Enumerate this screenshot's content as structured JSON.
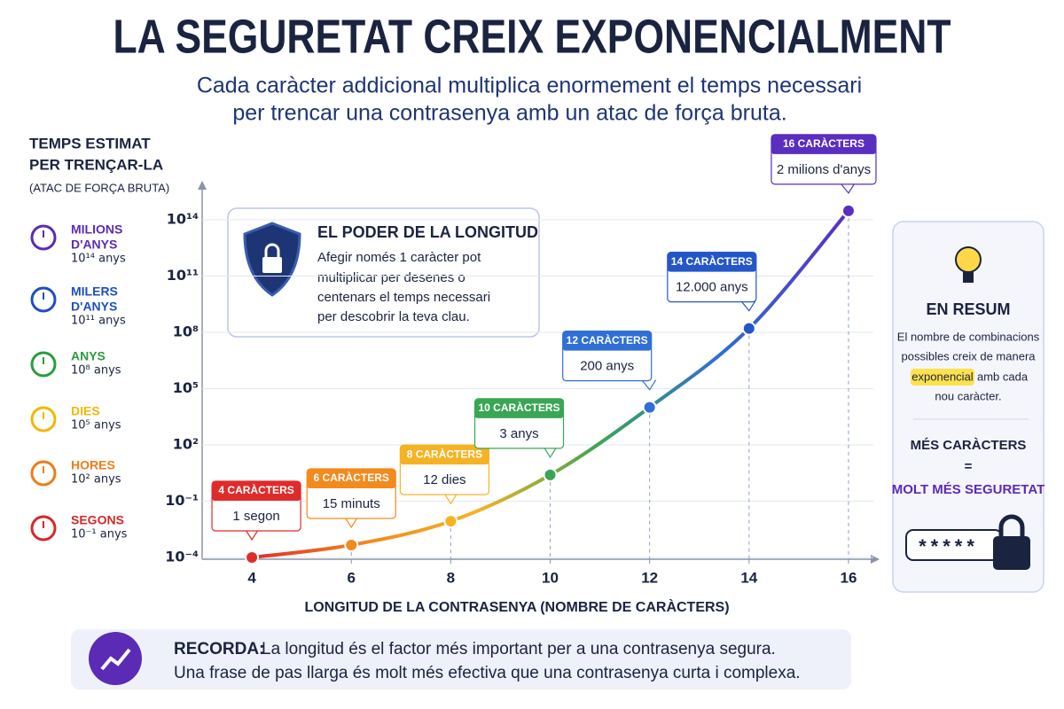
{
  "title": "LA SEGURETAT CREIX EXPONENCIALMENT",
  "subtitle": [
    "Cada caràcter addicional multiplica enormement el temps necessari",
    "per trencar una contrasenya amb un atac de força bruta."
  ],
  "y_axis_title": [
    "TEMPS ESTIMAT",
    "PER TRENÇAR-LA"
  ],
  "y_axis_subtitle": "(ATAC DE FORÇA BRUTA)",
  "scale_legend": [
    {
      "name": [
        "MILIONS",
        "D'ANYS"
      ],
      "value": "10¹⁴ anys",
      "color": "#5b2bb5"
    },
    {
      "name": [
        "MILERS",
        "D'ANYS"
      ],
      "value": "10¹¹ anys",
      "color": "#1f4fbf"
    },
    {
      "name": [
        "ANYS"
      ],
      "value": "10⁸ anys",
      "color": "#2a9d3f"
    },
    {
      "name": [
        "DIES"
      ],
      "value": "10⁵ anys",
      "color": "#f2b705"
    },
    {
      "name": [
        "HORES"
      ],
      "value": "10² anys",
      "color": "#f07c1a"
    },
    {
      "name": [
        "SEGONS"
      ],
      "value": "10⁻¹ anys",
      "color": "#d62828"
    }
  ],
  "chart_data": {
    "type": "line",
    "x_label": "LONGITUD DE LA CONTRASENYA (NOMBRE DE CARÀCTERS)",
    "x": [
      4,
      6,
      8,
      10,
      12,
      14,
      16
    ],
    "series": [
      {
        "values": [
          0.0001,
          0.00046,
          0.0085,
          2.5,
          10000,
          160000000,
          300000000000000
        ],
        "colors": [
          "#e02b2b",
          "#f28a1e",
          "#f5b324",
          "#3aa655",
          "#2f6fd6",
          "#2456c8",
          "#5a2ec0"
        ]
      }
    ],
    "callouts": [
      {
        "title": "4 CARÀCTERS",
        "text": "1 segon"
      },
      {
        "title": "6 CARÀCTERS",
        "text": "15 minuts"
      },
      {
        "title": "8 CARÀCTERS",
        "text": "12 dies"
      },
      {
        "title": "10 CARÀCTERS",
        "text": "3 anys"
      },
      {
        "title": "12 CARÀCTERS",
        "text": "200 anys"
      },
      {
        "title": "14 CARÀCTERS",
        "text": "12.000 anys"
      },
      {
        "title": "16 CARÀCTERS",
        "text": "2 milions d'anys"
      }
    ],
    "xlim": [
      3,
      16.5
    ],
    "xticks": [
      4,
      6,
      8,
      10,
      12,
      14,
      16
    ],
    "ylim": [
      0.0001,
      10000000000000000
    ],
    "log_y": true,
    "grid": true,
    "yticks": [
      {
        "value": 0.0001,
        "label": "10⁻⁴"
      },
      {
        "value": 0.1,
        "label": "10⁻¹"
      },
      {
        "value": 100,
        "label": "10²"
      },
      {
        "value": 100000,
        "label": "10⁵"
      },
      {
        "value": 100000000,
        "label": "10⁸"
      },
      {
        "value": 100000000000,
        "label": "10¹¹"
      },
      {
        "value": 100000000000000,
        "label": "10¹⁴"
      }
    ]
  },
  "info_box": {
    "title": "EL PODER DE LA LONGITUD",
    "lines": [
      "Afegir només 1 caràcter pot",
      "multiplicar per desenes o",
      "centenars el temps necessari",
      "per descobrir la teva clau."
    ]
  },
  "summary": {
    "title": "EN RESUM",
    "lines": [
      "El nombre de combinacions",
      "possibles creix de manera"
    ],
    "highlight": "exponencial",
    "after_highlight": "amb cada",
    "last_line": "nou caràcter.",
    "equation": [
      "MÉS CARÀCTERS",
      "=",
      "MOLT MÉS SEGURETAT"
    ],
    "password_mask": "*****"
  },
  "reminder": {
    "label": "RECORDA:",
    "lines": [
      "La longitud és el factor més important per a una contrasenya segura.",
      "Una frase de pas llarga és molt més efectiva que una contrasenya curta i complexa."
    ]
  }
}
